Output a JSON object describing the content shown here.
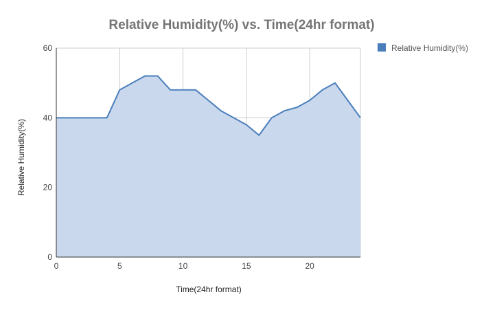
{
  "chart_data": {
    "type": "area",
    "title": "Relative Humidity(%) vs. Time(24hr format)",
    "xlabel": "Time(24hr format)",
    "ylabel": "Relative Humidity(%)",
    "xlim": [
      0,
      24
    ],
    "ylim": [
      0,
      60
    ],
    "xticks": [
      0,
      5,
      10,
      15,
      20
    ],
    "yticks": [
      0,
      20,
      40,
      60
    ],
    "grid": true,
    "legend": "right",
    "series": [
      {
        "name": "Relative Humidity(%)",
        "color": "#4a7ebb",
        "fill": "#c9d8ed",
        "x": [
          0,
          1,
          2,
          3,
          4,
          5,
          6,
          7,
          8,
          9,
          10,
          11,
          12,
          13,
          14,
          15,
          16,
          17,
          18,
          19,
          20,
          21,
          22,
          23,
          24
        ],
        "y": [
          40,
          40,
          40,
          40,
          40,
          48,
          50,
          52,
          52,
          48,
          48,
          48,
          45,
          42,
          40,
          38,
          35,
          40,
          42,
          43,
          45,
          48,
          50,
          45,
          40
        ]
      }
    ]
  }
}
